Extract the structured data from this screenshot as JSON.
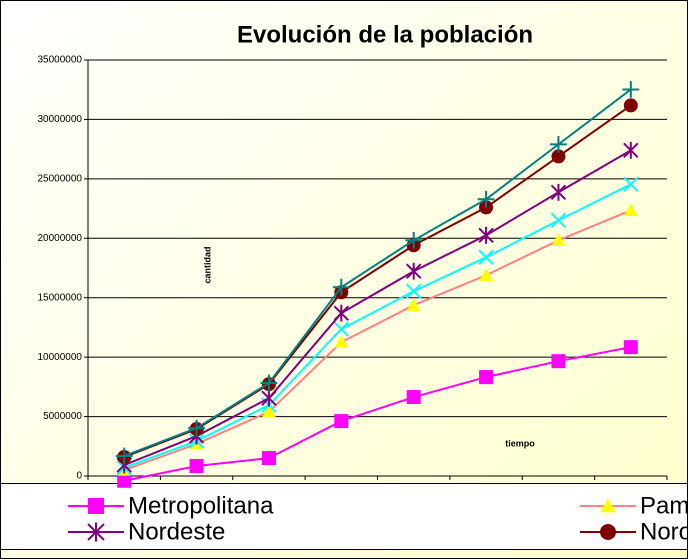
{
  "chart_data": {
    "type": "line",
    "title": "Evolución de la población",
    "y_label": "cantidad",
    "x_label": "tiempo",
    "categories": [
      null,
      null,
      null,
      null,
      null,
      null,
      null,
      null
    ],
    "ylim": [
      0,
      35000000
    ],
    "yticks": [
      0,
      5000000,
      10000000,
      15000000,
      20000000,
      25000000,
      30000000,
      35000000
    ],
    "grid": true,
    "series": [
      {
        "name": "Metropolitana",
        "color": "#ff00ff",
        "marker": "square",
        "marker_color": "#ff00ff",
        "values": [
          -400000,
          840000,
          1510000,
          4620000,
          6640000,
          8320000,
          9660000,
          10840000
        ]
      },
      {
        "name": "Pampeana",
        "color": "#ff8080",
        "marker": "triangle",
        "marker_color": "#ffff00",
        "values": [
          500000,
          2700000,
          5400000,
          11260000,
          14370000,
          16890000,
          19830000,
          22350000
        ]
      },
      {
        "color": "#00ffff",
        "marker": "x",
        "marker_color": "#00ffff",
        "values": [
          700000,
          2940000,
          5970000,
          12350000,
          15550000,
          18400000,
          21510000,
          24540000
        ]
      },
      {
        "name": "Nordeste",
        "color": "#800080",
        "marker": "star",
        "marker_color": "#800080",
        "values": [
          920000,
          3360000,
          6550000,
          13700000,
          17230000,
          20250000,
          23870000,
          27400000
        ]
      },
      {
        "name": "Noroeste",
        "color": "#800000",
        "marker": "circle",
        "marker_color": "#800000",
        "values": [
          1600000,
          3950000,
          7730000,
          15460000,
          19410000,
          22600000,
          26890000,
          31180000
        ]
      },
      {
        "color": "#008080",
        "marker": "plus",
        "marker_color": "#008080",
        "values": [
          1680000,
          4030000,
          7820000,
          15880000,
          19830000,
          23280000,
          27900000,
          32520000
        ]
      }
    ]
  }
}
